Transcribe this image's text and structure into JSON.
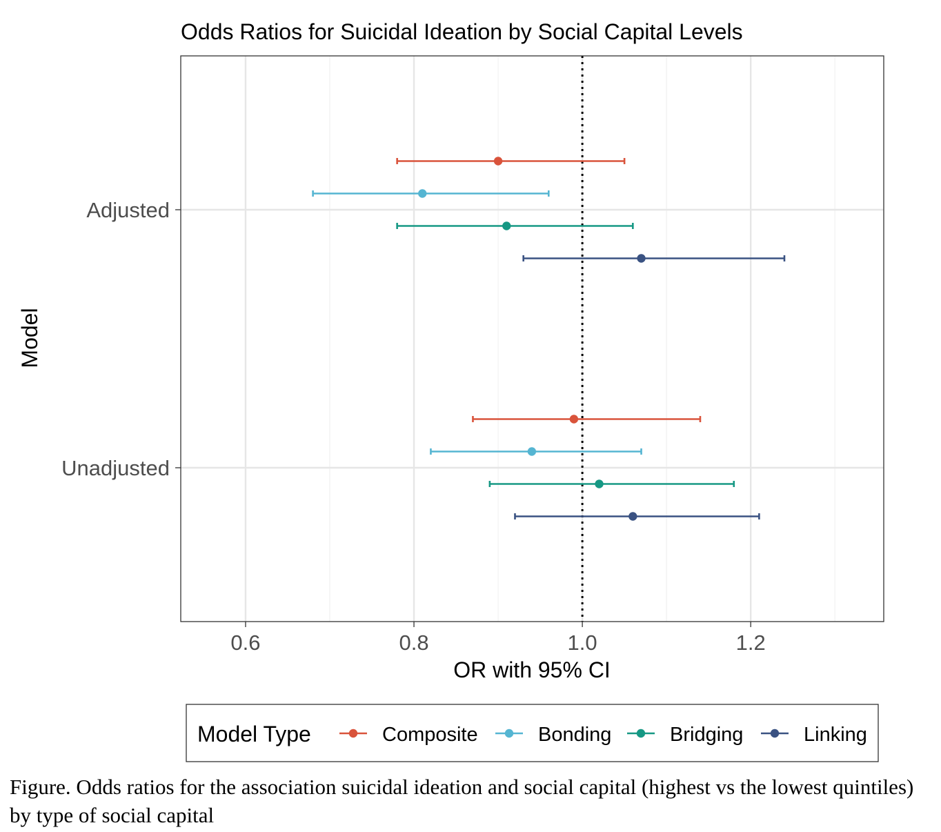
{
  "chart_data": {
    "type": "forest",
    "title": "Odds Ratios for Suicidal Ideation by Social Capital Levels",
    "xlabel": "OR with 95% CI",
    "ylabel": "Model",
    "xlim": [
      0.523,
      1.358
    ],
    "x_ticks": [
      0.6,
      0.8,
      1.0,
      1.2
    ],
    "x_tick_labels": [
      "0.6",
      "0.8",
      "1.0",
      "1.2"
    ],
    "reference_line": 1.0,
    "grid": true,
    "legend_position": "bottom",
    "legend_title": "Model Type",
    "categories": [
      "Adjusted",
      "Unadjusted"
    ],
    "series": [
      {
        "name": "Composite",
        "color": "#d9533b",
        "points": [
          {
            "category": "Adjusted",
            "or": 0.9,
            "lower": 0.78,
            "upper": 1.05
          },
          {
            "category": "Unadjusted",
            "or": 0.99,
            "lower": 0.87,
            "upper": 1.14
          }
        ]
      },
      {
        "name": "Bonding",
        "color": "#55b5d2",
        "points": [
          {
            "category": "Adjusted",
            "or": 0.81,
            "lower": 0.68,
            "upper": 0.96
          },
          {
            "category": "Unadjusted",
            "or": 0.94,
            "lower": 0.82,
            "upper": 1.07
          }
        ]
      },
      {
        "name": "Bridging",
        "color": "#169884",
        "points": [
          {
            "category": "Adjusted",
            "or": 0.91,
            "lower": 0.78,
            "upper": 1.06
          },
          {
            "category": "Unadjusted",
            "or": 1.02,
            "lower": 0.89,
            "upper": 1.18
          }
        ]
      },
      {
        "name": "Linking",
        "color": "#3a5282",
        "points": [
          {
            "category": "Adjusted",
            "or": 1.07,
            "lower": 0.93,
            "upper": 1.24
          },
          {
            "category": "Unadjusted",
            "or": 1.06,
            "lower": 0.92,
            "upper": 1.21
          }
        ]
      }
    ]
  },
  "caption": "Figure. Odds ratios for the association suicidal ideation and social capital (highest vs the lowest quintiles) by type of social capital"
}
